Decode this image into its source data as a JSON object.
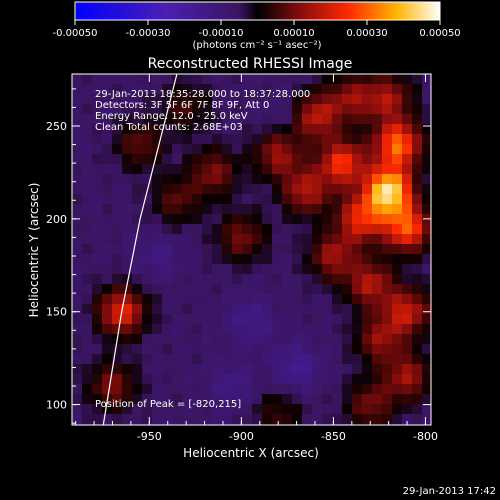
{
  "chart_data": {
    "type": "heatmap",
    "title": "Reconstructed RHESSI Image",
    "xlabel": "Heliocentric X (arcsec)",
    "ylabel": "Heliocentric Y (arcsec)",
    "xlim": [
      -992,
      -797
    ],
    "ylim": [
      89,
      278
    ],
    "x_ticks": [
      -950,
      -900,
      -850,
      -800
    ],
    "y_ticks": [
      100,
      150,
      200,
      250
    ],
    "colorbar": {
      "ticks": [
        -0.0005,
        -0.0003,
        -0.0001,
        0.0001,
        0.0003,
        0.0005
      ],
      "tick_labels": [
        "-0.00050",
        "-0.00030",
        "-0.00010",
        "0.00010",
        "0.00030",
        "0.00050"
      ],
      "range": [
        -0.0005,
        0.0005
      ],
      "unit": "(photons cm⁻² s⁻¹ asec⁻²)"
    },
    "annotations": [
      "29-Jan-2013 18:35:28.000 to 18:37:28.000",
      "Detectors: 3F 5F 6F 7F 8F 9F, Att 0",
      "Energy Range: 12.0 - 25.0 keV",
      "Clean     Total counts: 2.68E+03"
    ],
    "peak_label": "Position of Peak = [-820,215]",
    "peak": [
      -820,
      215
    ],
    "blobs": [
      {
        "x": -820,
        "y": 215,
        "value": 0.00049
      },
      {
        "x": -815,
        "y": 240,
        "value": 0.00036
      },
      {
        "x": -810,
        "y": 195,
        "value": 0.00033
      },
      {
        "x": -835,
        "y": 200,
        "value": 0.00028
      },
      {
        "x": -845,
        "y": 230,
        "value": 0.0003
      },
      {
        "x": -865,
        "y": 215,
        "value": 0.00022
      },
      {
        "x": -880,
        "y": 235,
        "value": 0.0002
      },
      {
        "x": -860,
        "y": 255,
        "value": 0.00024
      },
      {
        "x": -840,
        "y": 265,
        "value": 0.00018
      },
      {
        "x": -820,
        "y": 265,
        "value": 0.0002
      },
      {
        "x": -850,
        "y": 180,
        "value": 0.0002
      },
      {
        "x": -830,
        "y": 165,
        "value": 0.00022
      },
      {
        "x": -810,
        "y": 150,
        "value": 0.00024
      },
      {
        "x": -825,
        "y": 135,
        "value": 0.00018
      },
      {
        "x": -810,
        "y": 115,
        "value": 0.0002
      },
      {
        "x": -830,
        "y": 100,
        "value": 0.00016
      },
      {
        "x": -900,
        "y": 190,
        "value": 0.00016
      },
      {
        "x": -915,
        "y": 225,
        "value": 0.00017
      },
      {
        "x": -935,
        "y": 210,
        "value": 0.00013
      },
      {
        "x": -955,
        "y": 240,
        "value": 0.00014
      },
      {
        "x": -965,
        "y": 150,
        "value": 0.00028
      },
      {
        "x": -970,
        "y": 110,
        "value": 0.00017
      },
      {
        "x": -880,
        "y": 95,
        "value": 0.0001
      },
      {
        "x": -930,
        "y": 260,
        "value": 0.00011
      },
      {
        "x": -895,
        "y": 145,
        "value": -8e-05
      },
      {
        "x": -870,
        "y": 120,
        "value": -0.0001
      },
      {
        "x": -945,
        "y": 180,
        "value": -6e-05
      },
      {
        "x": -905,
        "y": 110,
        "value": -7e-05
      },
      {
        "x": -875,
        "y": 255,
        "value": -5e-05
      }
    ],
    "limb_line": [
      [
        -935,
        278
      ],
      [
        -955,
        200
      ],
      [
        -965,
        150
      ],
      [
        -975,
        89
      ]
    ],
    "grid": false
  },
  "footer": {
    "timestamp": "29-Jan-2013 17:42"
  },
  "colors": {
    "background": "#000000",
    "foreground": "#ffffff"
  }
}
